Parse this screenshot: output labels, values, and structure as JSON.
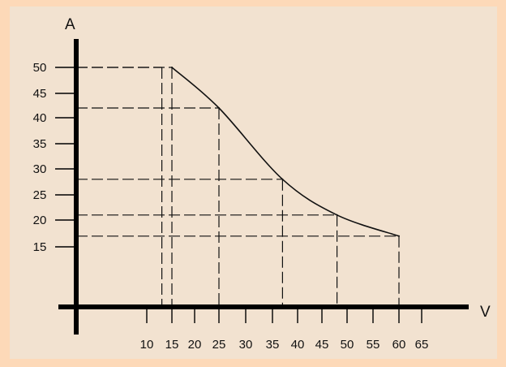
{
  "chart_data": {
    "type": "line",
    "xlabel": "V",
    "ylabel": "A",
    "x_ticks": [
      10,
      15,
      20,
      25,
      30,
      35,
      40,
      45,
      50,
      55,
      60,
      65
    ],
    "y_ticks": [
      15,
      20,
      25,
      30,
      35,
      40,
      45,
      50
    ],
    "x_tick_labels": [
      "10",
      "15",
      "20",
      "25",
      "30",
      "35",
      "40",
      "45",
      "50",
      "55",
      "60",
      "65"
    ],
    "y_tick_labels": [
      "15",
      "20",
      "25",
      "30",
      "35",
      "40",
      "45",
      "50"
    ],
    "series": [
      {
        "x": [
          15,
          25,
          37,
          48,
          60
        ],
        "y": [
          50,
          42,
          28,
          21,
          17
        ]
      }
    ],
    "reference_points": [
      {
        "x": 13,
        "y": 50
      },
      {
        "x": 15,
        "y": 50
      },
      {
        "x": 25,
        "y": 42
      },
      {
        "x": 37,
        "y": 28
      },
      {
        "x": 48,
        "y": 21
      },
      {
        "x": 60,
        "y": 17
      }
    ],
    "xlim": [
      0,
      65
    ],
    "ylim": [
      0,
      50
    ],
    "grid": false,
    "legend": "none",
    "colors": {
      "background": "#f2e2d0",
      "frame": "#fdd9b8",
      "line": "#111111",
      "axis": "#000000"
    }
  }
}
